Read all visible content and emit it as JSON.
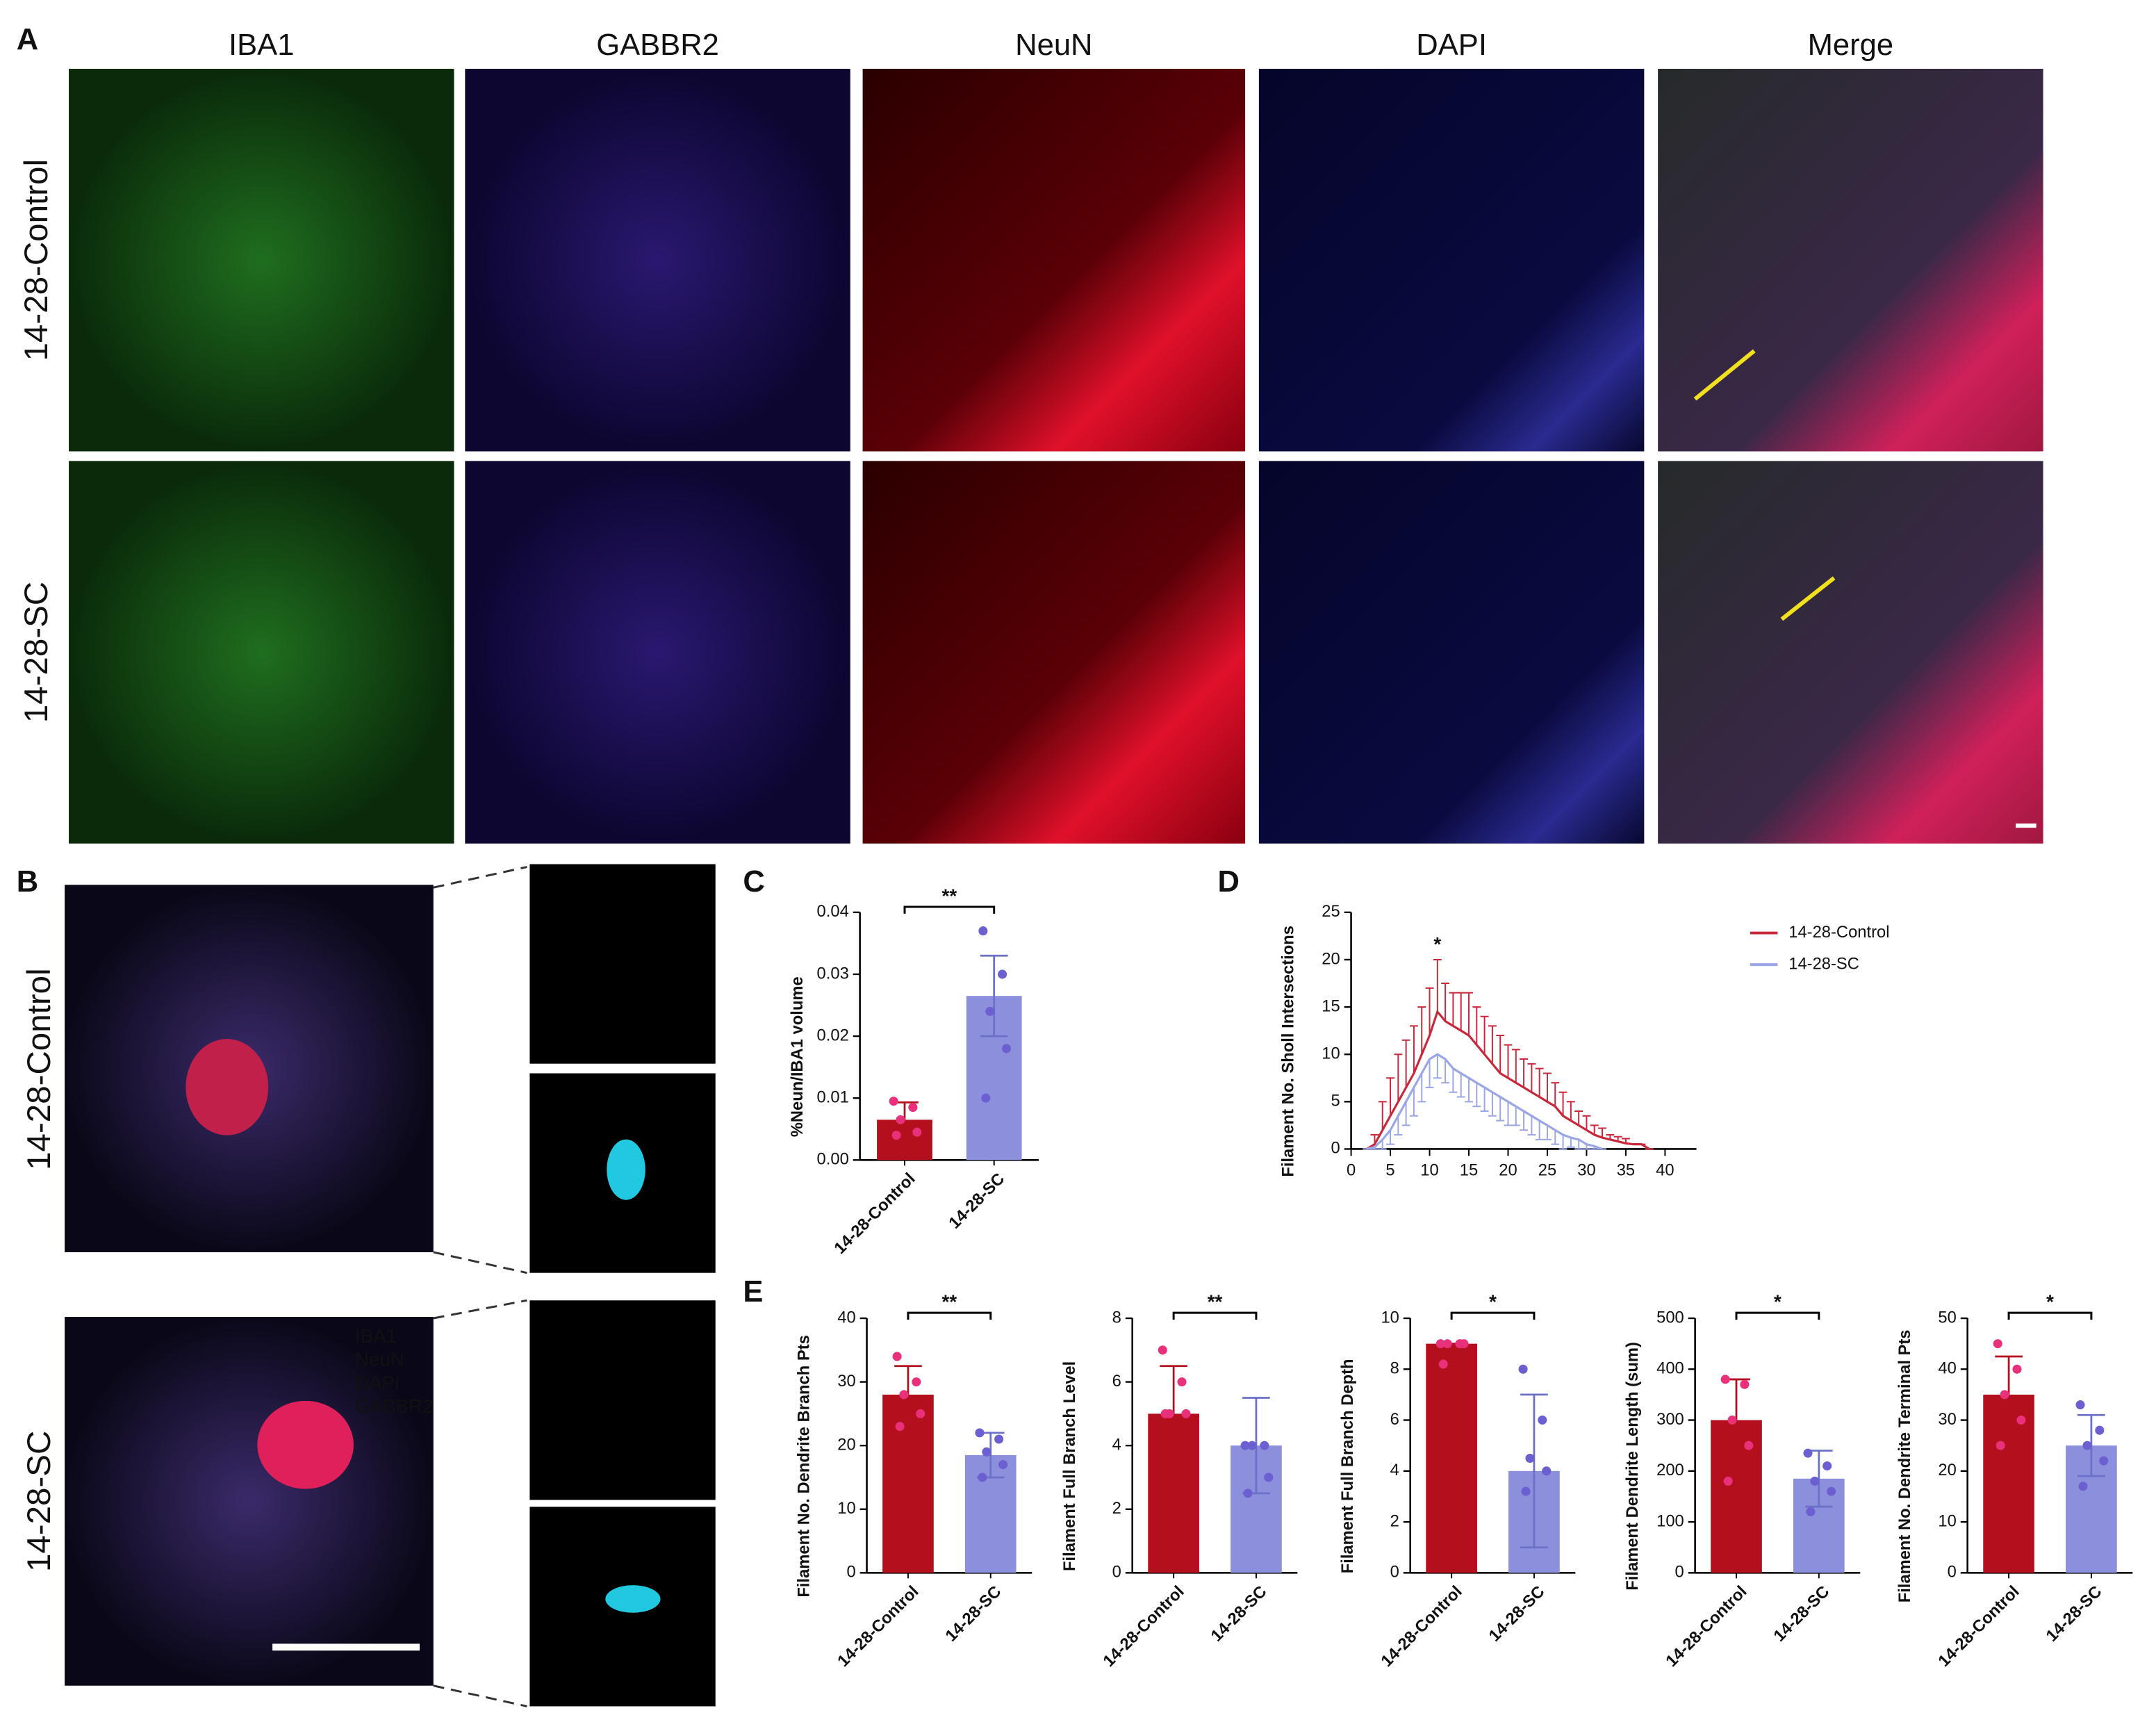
{
  "panel_labels": [
    "A",
    "B",
    "C",
    "D",
    "E"
  ],
  "a_columns": [
    "IBA1",
    "GABBR2",
    "NeuN",
    "DAPI",
    "Merge"
  ],
  "a_rows": [
    "14-28-Control",
    "14-28-SC"
  ],
  "b_rows": [
    "14-28-Control",
    "14-28-SC"
  ],
  "b_legend": [
    "IBA1",
    "NeuN",
    "DAPI",
    "GABBR2"
  ],
  "chart_data": [
    {
      "type": "bar",
      "ylabel": "%Neun/IBA1 volume",
      "categories": [
        "14-28-Control",
        "14-28-SC"
      ],
      "values": [
        0.0065,
        0.0265
      ],
      "errors": [
        0.0028,
        0.0065
      ],
      "points": [
        [
          0.0095,
          0.0085,
          0.0065,
          0.0045,
          0.004
        ],
        [
          0.037,
          0.03,
          0.024,
          0.018,
          0.01
        ]
      ],
      "colors": [
        "#b30f1c",
        "#8c8fdc"
      ],
      "point_colors": [
        "#e8317a",
        "#6b5fd1"
      ],
      "ylim": [
        0,
        0.04
      ],
      "yticks": [
        {
          "value": 0,
          "label": "0.00"
        },
        {
          "value": 0.01,
          "label": "0.01"
        },
        {
          "value": 0.02,
          "label": "0.02"
        },
        {
          "value": 0.03,
          "label": "0.03"
        },
        {
          "value": 0.04,
          "label": "0.04"
        }
      ],
      "significance": "**"
    },
    {
      "type": "line",
      "ylabel": "Filament No. Sholl Intersections",
      "x": [
        2,
        3,
        4,
        5,
        6,
        7,
        8,
        9,
        10,
        11,
        12,
        13,
        14,
        15,
        16,
        17,
        18,
        19,
        20,
        21,
        22,
        23,
        24,
        25,
        26,
        27,
        28,
        29,
        30,
        31,
        32,
        33,
        34,
        35,
        36,
        37,
        38
      ],
      "series": [
        {
          "name": "14-28-Control",
          "color": "#c8283a",
          "values": [
            0,
            0.5,
            2,
            3.5,
            5,
            6.5,
            8,
            10,
            12,
            14.5,
            13.5,
            13,
            12.5,
            12,
            11,
            10,
            9,
            8,
            7.5,
            7,
            6.5,
            6,
            5.5,
            5,
            4.5,
            3.5,
            3,
            2.5,
            2,
            1.5,
            1.2,
            1,
            0.8,
            0.6,
            0.5,
            0.5,
            0
          ],
          "errors": [
            0,
            1,
            3,
            4,
            5,
            5,
            5,
            5,
            5,
            5.5,
            4,
            3.5,
            4,
            4.5,
            4,
            4,
            4,
            4,
            3.5,
            3.5,
            3,
            3,
            3,
            3,
            2.5,
            2.5,
            2,
            1.5,
            1.5,
            1,
            1,
            0.5,
            0.5,
            0.5,
            0,
            0,
            0
          ]
        },
        {
          "name": "14-28-SC",
          "color": "#9aa6e6",
          "values": [
            0,
            0.2,
            1,
            2,
            3.5,
            5,
            6.5,
            8,
            9.5,
            10,
            9.5,
            8.5,
            8,
            7.5,
            7,
            6.5,
            6,
            5.5,
            5,
            4.5,
            4,
            3.5,
            3,
            2.5,
            2,
            1.5,
            1.2,
            1,
            0.5,
            0.3,
            0,
            null,
            null,
            null,
            null,
            null,
            null
          ],
          "errors": [
            0,
            0.2,
            1,
            1.5,
            2,
            2.5,
            3,
            3,
            3,
            2.5,
            2.5,
            2.5,
            2.5,
            2.5,
            2.5,
            2.5,
            2.5,
            2.5,
            2.5,
            2,
            2,
            2,
            2,
            1.5,
            1.5,
            1.5,
            1,
            1,
            0.5,
            0.3,
            0,
            null,
            null,
            null,
            null,
            null,
            null
          ]
        }
      ],
      "xlim": [
        0,
        44
      ],
      "xticks": [
        0,
        5,
        10,
        15,
        20,
        25,
        30,
        35,
        40
      ],
      "ylim": [
        0,
        25
      ],
      "yticks": [
        0,
        5,
        10,
        15,
        20,
        25
      ],
      "annotations": [
        {
          "text": "*",
          "x": 11,
          "y": 21.5
        }
      ],
      "legend": "right"
    },
    {
      "type": "bar",
      "ylabel": "Filament No. Dendrite Branch Pts",
      "categories": [
        "14-28-Control",
        "14-28-SC"
      ],
      "values": [
        28,
        18.5
      ],
      "errors": [
        4.5,
        3.5
      ],
      "points": [
        [
          34,
          30,
          28,
          25,
          23
        ],
        [
          22,
          21,
          19,
          17,
          15
        ]
      ],
      "colors": [
        "#b30f1c",
        "#8c8fdc"
      ],
      "point_colors": [
        "#e8317a",
        "#6b5fd1"
      ],
      "ylim": [
        0,
        40
      ],
      "yticks": [
        0,
        10,
        20,
        30,
        40
      ],
      "significance": "**"
    },
    {
      "type": "bar",
      "ylabel": "Filament Full Branch Level",
      "categories": [
        "14-28-Control",
        "14-28-SC"
      ],
      "values": [
        5,
        4
      ],
      "errors": [
        1.5,
        1.5
      ],
      "points": [
        [
          7,
          6,
          5,
          5,
          5
        ],
        [
          4,
          4,
          4,
          3,
          2.5
        ]
      ],
      "colors": [
        "#b30f1c",
        "#8c8fdc"
      ],
      "point_colors": [
        "#e8317a",
        "#6b5fd1"
      ],
      "ylim": [
        0,
        8
      ],
      "yticks": [
        0,
        2,
        4,
        6,
        8
      ],
      "significance": "**"
    },
    {
      "type": "bar",
      "ylabel": "Filament Full Branch Depth",
      "categories": [
        "14-28-Control",
        "14-28-SC"
      ],
      "values": [
        9,
        4
      ],
      "errors": [
        0,
        3
      ],
      "points": [
        [
          9,
          9,
          9,
          9,
          8.2
        ],
        [
          8,
          6,
          4.5,
          4,
          3.2
        ]
      ],
      "colors": [
        "#b30f1c",
        "#8c8fdc"
      ],
      "point_colors": [
        "#e8317a",
        "#6b5fd1"
      ],
      "ylim": [
        0,
        10
      ],
      "yticks": [
        0,
        2,
        4,
        6,
        8,
        10
      ],
      "significance": "*"
    },
    {
      "type": "bar",
      "ylabel": "Filament Dendrite Length (sum)",
      "categories": [
        "14-28-Control",
        "14-28-SC"
      ],
      "values": [
        300,
        185
      ],
      "errors": [
        80,
        55
      ],
      "points": [
        [
          380,
          370,
          300,
          250,
          180
        ],
        [
          235,
          210,
          180,
          160,
          120
        ]
      ],
      "colors": [
        "#b30f1c",
        "#8c8fdc"
      ],
      "point_colors": [
        "#e8317a",
        "#6b5fd1"
      ],
      "ylim": [
        0,
        500
      ],
      "yticks": [
        0,
        100,
        200,
        300,
        400,
        500
      ],
      "significance": "*"
    },
    {
      "type": "bar",
      "ylabel": "Filament No. Dendrite Terminal Pts",
      "categories": [
        "14-28-Control",
        "14-28-SC"
      ],
      "values": [
        35,
        25
      ],
      "errors": [
        7.5,
        6
      ],
      "points": [
        [
          45,
          40,
          35,
          30,
          25
        ],
        [
          33,
          28,
          25,
          22,
          17
        ]
      ],
      "colors": [
        "#b30f1c",
        "#8c8fdc"
      ],
      "point_colors": [
        "#e8317a",
        "#6b5fd1"
      ],
      "ylim": [
        0,
        50
      ],
      "yticks": [
        0,
        10,
        20,
        30,
        40,
        50
      ],
      "significance": "*"
    }
  ]
}
